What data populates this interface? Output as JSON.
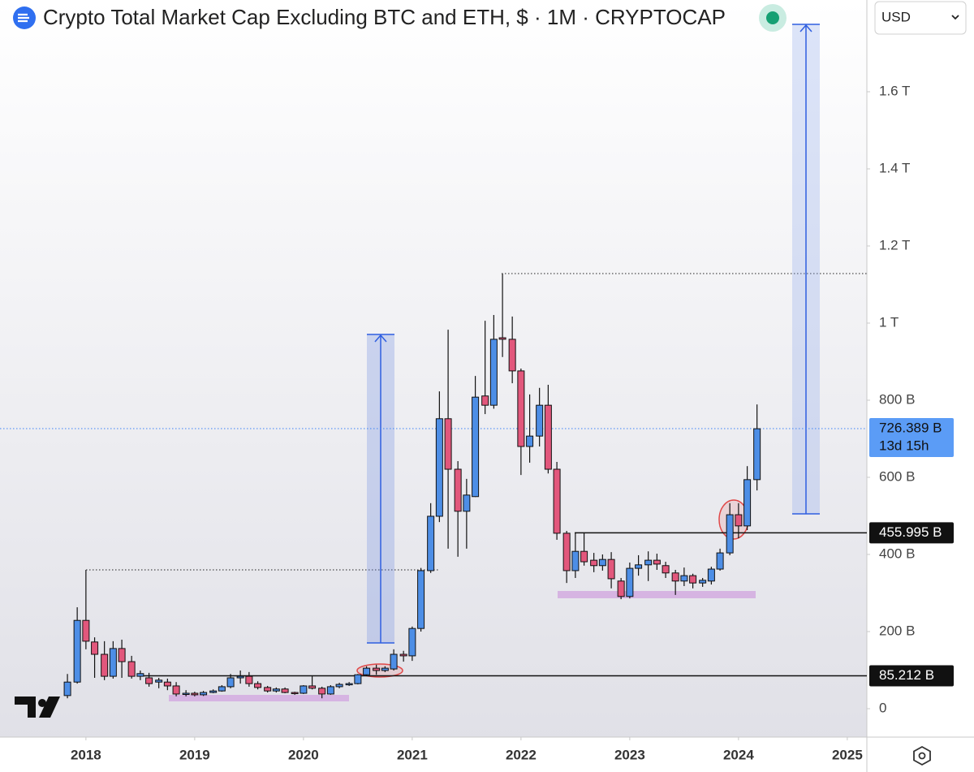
{
  "chart_data": {
    "type": "candlestick",
    "title": "Crypto Total Market Cap Excluding BTC and ETH, $ · 1M · CRYPTOCAP",
    "currency": "USD",
    "up_color": "#4d8ee6",
    "down_color": "#e2577c",
    "x": [
      2017.83,
      2017.92,
      2018.0,
      2018.08,
      2018.17,
      2018.25,
      2018.33,
      2018.42,
      2018.5,
      2018.58,
      2018.67,
      2018.75,
      2018.83,
      2018.92,
      2019.0,
      2019.08,
      2019.17,
      2019.25,
      2019.33,
      2019.42,
      2019.5,
      2019.58,
      2019.67,
      2019.75,
      2019.83,
      2019.92,
      2020.0,
      2020.08,
      2020.17,
      2020.25,
      2020.33,
      2020.42,
      2020.5,
      2020.58,
      2020.67,
      2020.75,
      2020.83,
      2020.92,
      2021.0,
      2021.08,
      2021.17,
      2021.25,
      2021.33,
      2021.42,
      2021.5,
      2021.58,
      2021.67,
      2021.75,
      2021.83,
      2021.92,
      2022.0,
      2022.08,
      2022.17,
      2022.25,
      2022.33,
      2022.42,
      2022.5,
      2022.58,
      2022.67,
      2022.75,
      2022.83,
      2022.92,
      2023.0,
      2023.08,
      2023.17,
      2023.25,
      2023.33,
      2023.42,
      2023.5,
      2023.58,
      2023.67,
      2023.75,
      2023.83,
      2023.92,
      2024.0,
      2024.08,
      2024.17
    ],
    "open": [
      34,
      69,
      229,
      173,
      141,
      84,
      156,
      122,
      84,
      80,
      69,
      69,
      59,
      38,
      40,
      36,
      42,
      46,
      57,
      80,
      84,
      65,
      55,
      46,
      51,
      42,
      40,
      59,
      53,
      38,
      57,
      63,
      65,
      88,
      105,
      99,
      103,
      141,
      137,
      208,
      358,
      499,
      752,
      621,
      512,
      550,
      811,
      787,
      962,
      958,
      876,
      680,
      707,
      787,
      621,
      455,
      358,
      408,
      385,
      371,
      387,
      331,
      291,
      364,
      373,
      385,
      371,
      352,
      331,
      345,
      326,
      331,
      362,
      404,
      503,
      474,
      594
    ],
    "high": [
      90,
      263,
      360,
      185,
      175,
      175,
      179,
      137,
      99,
      93,
      80,
      78,
      69,
      48,
      44,
      46,
      50,
      61,
      90,
      99,
      95,
      71,
      59,
      55,
      55,
      44,
      61,
      84,
      57,
      61,
      67,
      69,
      90,
      110,
      114,
      110,
      154,
      150,
      213,
      365,
      533,
      823,
      983,
      642,
      596,
      863,
      1006,
      1021,
      1128,
      1017,
      882,
      815,
      832,
      840,
      640,
      461,
      455,
      455,
      404,
      400,
      406,
      339,
      379,
      398,
      408,
      402,
      381,
      360,
      366,
      350,
      339,
      368,
      415,
      533,
      533,
      629,
      789
    ],
    "low": [
      27,
      65,
      154,
      80,
      74,
      78,
      80,
      78,
      74,
      57,
      53,
      48,
      32,
      32,
      32,
      33,
      40,
      44,
      53,
      65,
      57,
      50,
      42,
      42,
      40,
      36,
      38,
      50,
      27,
      36,
      53,
      59,
      63,
      86,
      88,
      95,
      99,
      122,
      124,
      200,
      352,
      484,
      415,
      394,
      415,
      549,
      764,
      778,
      912,
      844,
      606,
      638,
      680,
      610,
      438,
      326,
      339,
      371,
      354,
      358,
      312,
      284,
      286,
      345,
      331,
      360,
      339,
      295,
      318,
      312,
      316,
      322,
      358,
      398,
      442,
      463,
      566
    ],
    "close": [
      69,
      229,
      175,
      141,
      84,
      156,
      122,
      84,
      91,
      65,
      74,
      59,
      38,
      40,
      36,
      42,
      46,
      57,
      80,
      84,
      65,
      55,
      46,
      51,
      42,
      40,
      59,
      53,
      38,
      57,
      63,
      65,
      88,
      105,
      99,
      105,
      141,
      137,
      208,
      358,
      499,
      752,
      621,
      512,
      554,
      808,
      787,
      958,
      958,
      876,
      680,
      707,
      787,
      621,
      455,
      358,
      408,
      381,
      371,
      387,
      337,
      291,
      364,
      373,
      385,
      375,
      352,
      331,
      345,
      326,
      333,
      362,
      404,
      503,
      474,
      594,
      726
    ],
    "xlim": [
      2017.21,
      2025.18
    ],
    "xticks": [
      2018,
      2019,
      2020,
      2021,
      2022,
      2023,
      2024,
      2025
    ],
    "ylim": [
      -73.7,
      1837.9
    ],
    "yticks": [
      0,
      {
        "value": 200,
        "label": "200 B"
      },
      {
        "value": 400,
        "label": "400 B"
      },
      {
        "value": 600,
        "label": "600 B"
      },
      {
        "value": 800,
        "label": "800 B"
      },
      {
        "value": 1000,
        "label": "1 T"
      },
      {
        "value": 1200,
        "label": "1.2 T"
      },
      {
        "value": 1400,
        "label": "1.4 T"
      },
      {
        "value": 1600,
        "label": "1.6 T"
      }
    ],
    "price_lines": [
      {
        "value": 726.389,
        "label": "726.389 B",
        "countdown": "13d 15h"
      },
      {
        "value": 455.995,
        "label": "455.995 B"
      },
      {
        "value": 85.212,
        "label": "85.212 B"
      }
    ]
  }
}
